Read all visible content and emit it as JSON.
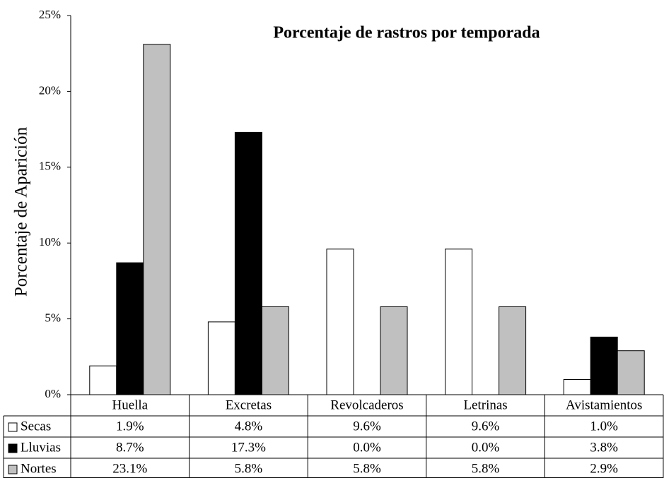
{
  "chart_data": {
    "type": "bar",
    "title": "Porcentaje de rastros por temporada",
    "y_label": "Porcentaje de Aparición",
    "categories": [
      "Huella",
      "Excretas",
      "Revolcaderos",
      "Letrinas",
      "Avistamientos"
    ],
    "series": [
      {
        "name": "Secas",
        "color": "#ffffff",
        "values": [
          1.9,
          4.8,
          9.6,
          9.6,
          1.0
        ],
        "value_labels": [
          "1.9%",
          "4.8%",
          "9.6%",
          "9.6%",
          "1.0%"
        ]
      },
      {
        "name": "Lluvias",
        "color": "#000000",
        "values": [
          8.7,
          17.3,
          0.0,
          0.0,
          3.8
        ],
        "value_labels": [
          "8.7%",
          "17.3%",
          "0.0%",
          "0.0%",
          "3.8%"
        ]
      },
      {
        "name": "Nortes",
        "color": "#c0c0c0",
        "values": [
          23.1,
          5.8,
          5.8,
          5.8,
          2.9
        ],
        "value_labels": [
          "23.1%",
          "5.8%",
          "5.8%",
          "5.8%",
          "2.9%"
        ]
      }
    ],
    "ylim": [
      0,
      25
    ],
    "yticks": [
      {
        "value": 0,
        "label": "0%"
      },
      {
        "value": 5,
        "label": "5%"
      },
      {
        "value": 10,
        "label": "10%"
      },
      {
        "value": 15,
        "label": "15%"
      },
      {
        "value": 20,
        "label": "20%"
      },
      {
        "value": 25,
        "label": "25%"
      }
    ],
    "grid": false
  }
}
